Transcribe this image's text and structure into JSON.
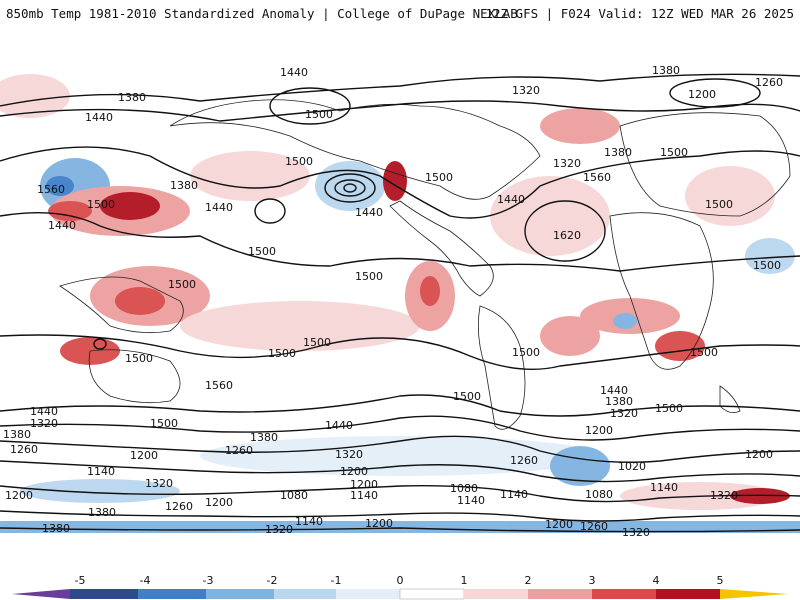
{
  "header": {
    "title": "850mb Temp 1981-2010 Standardized Anomaly | College of DuPage NEXLAB",
    "run_info": "12Z GFS | F024 Valid: 12Z WED MAR 26 2025"
  },
  "map": {
    "contour_labels": [
      "1440",
      "1380",
      "1260",
      "1200",
      "1320",
      "1500",
      "1560",
      "1620",
      "1140",
      "1080",
      "1020"
    ],
    "colors": {
      "land_outline": "#222222",
      "contour": "#111111"
    }
  },
  "colorbar": {
    "ticks": [
      "-5",
      "-4",
      "-3",
      "-2",
      "-1",
      "0",
      "1",
      "2",
      "3",
      "4",
      "5"
    ],
    "colors": [
      "#6a3d9a",
      "#2c4a8c",
      "#3f7fc9",
      "#7fb3e0",
      "#b9d6ef",
      "#e3eef8",
      "#ffffff",
      "#f7d6d6",
      "#ee9f9f",
      "#d94b4b",
      "#b0121f",
      "#7a0b12",
      "#f5c400"
    ]
  }
}
